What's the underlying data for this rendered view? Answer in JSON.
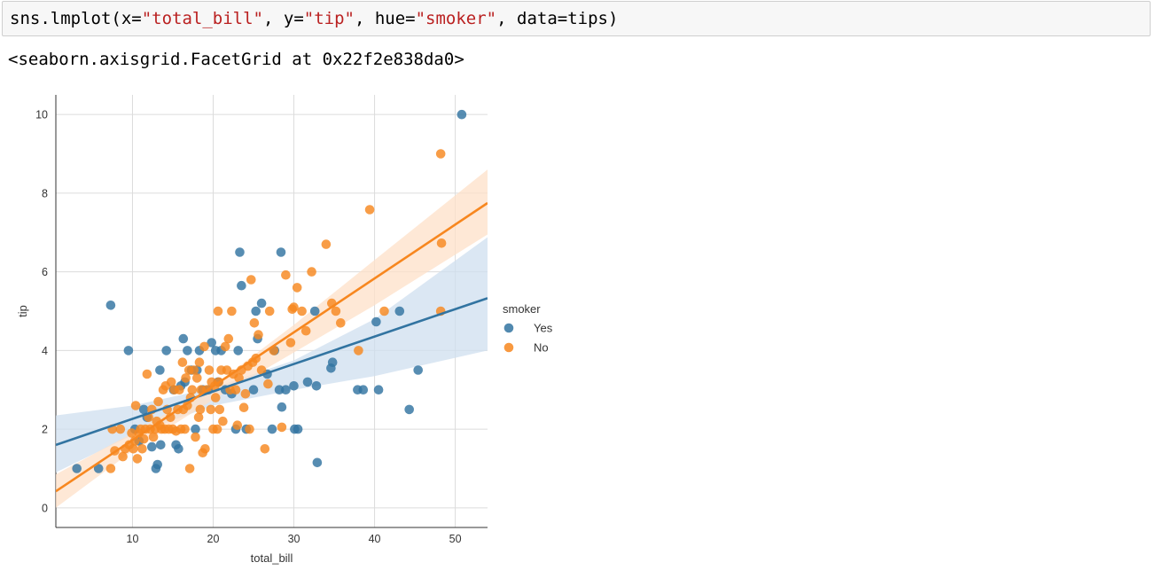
{
  "cell": {
    "code_parts": [
      "sns.lmplot(x=",
      "\"total_bill\"",
      ", y=",
      "\"tip\"",
      ", hue=",
      "\"smoker\"",
      ", data=tips)"
    ],
    "output": "<seaborn.axisgrid.FacetGrid at 0x22f2e838da0>"
  },
  "colors": {
    "yes": "#3274a1",
    "no": "#f7871f",
    "band_yes": "#cfdfef",
    "band_no": "#fde0c8",
    "grid": "#dcdcdc",
    "axis": "#333333"
  },
  "chart_data": {
    "type": "scatter",
    "title": "",
    "xlabel": "total_bill",
    "ylabel": "tip",
    "xlim": [
      0.5,
      54
    ],
    "ylim": [
      -0.5,
      10.5
    ],
    "xticks": [
      10,
      20,
      30,
      40,
      50
    ],
    "yticks": [
      0,
      2,
      4,
      6,
      8,
      10
    ],
    "grid": true,
    "legend": {
      "title": "smoker",
      "placement": "right"
    },
    "series": [
      {
        "name": "Yes",
        "color": "#3274a1",
        "fit_line": [
          [
            0.5,
            1.6
          ],
          [
            54,
            5.33
          ]
        ],
        "ci_band": {
          "x": [
            0.5,
            10,
            20,
            30,
            40,
            54
          ],
          "upper": [
            2.35,
            2.6,
            3.05,
            3.75,
            4.8,
            6.88
          ],
          "lower": [
            0.9,
            1.85,
            2.6,
            3.0,
            3.35,
            4.0
          ]
        },
        "points": [
          [
            3.1,
            1
          ],
          [
            5.8,
            1
          ],
          [
            7.3,
            5.15
          ],
          [
            9.5,
            4
          ],
          [
            10.3,
            2
          ],
          [
            10.8,
            1.7
          ],
          [
            11.4,
            2.5
          ],
          [
            11.8,
            2.3
          ],
          [
            12.4,
            1.55
          ],
          [
            12.9,
            1
          ],
          [
            13.1,
            1.1
          ],
          [
            13.4,
            3.5
          ],
          [
            13.5,
            1.6
          ],
          [
            14.2,
            4
          ],
          [
            15.1,
            3
          ],
          [
            15.4,
            1.6
          ],
          [
            15.7,
            1.5
          ],
          [
            16,
            3.1
          ],
          [
            16.3,
            4.3
          ],
          [
            16.5,
            3.2
          ],
          [
            16.8,
            4
          ],
          [
            17.3,
            3.5
          ],
          [
            17.8,
            2
          ],
          [
            18,
            3.5
          ],
          [
            18.3,
            4
          ],
          [
            18.7,
            3
          ],
          [
            19.4,
            3
          ],
          [
            19.8,
            4.2
          ],
          [
            20.3,
            4
          ],
          [
            20.6,
            3.2
          ],
          [
            21,
            4
          ],
          [
            21.5,
            3
          ],
          [
            22.3,
            2.9
          ],
          [
            22.8,
            2
          ],
          [
            23.1,
            4
          ],
          [
            23.3,
            6.5
          ],
          [
            23.5,
            5.65
          ],
          [
            24.1,
            2
          ],
          [
            25,
            3
          ],
          [
            25.3,
            5
          ],
          [
            25.5,
            4.3
          ],
          [
            26,
            5.2
          ],
          [
            26.7,
            3.4
          ],
          [
            27.3,
            2
          ],
          [
            27.6,
            4
          ],
          [
            28.2,
            3
          ],
          [
            28.4,
            6.5
          ],
          [
            28.5,
            2.56
          ],
          [
            29,
            3
          ],
          [
            30,
            3.1
          ],
          [
            30.1,
            2
          ],
          [
            30.5,
            2
          ],
          [
            31.7,
            3.2
          ],
          [
            32.6,
            5
          ],
          [
            32.9,
            1.15
          ],
          [
            32.8,
            3.1
          ],
          [
            34.6,
            3.55
          ],
          [
            34.8,
            3.7
          ],
          [
            37.9,
            3
          ],
          [
            38.6,
            3
          ],
          [
            40.2,
            4.73
          ],
          [
            40.5,
            3
          ],
          [
            43.1,
            5
          ],
          [
            44.3,
            2.5
          ],
          [
            45.4,
            3.5
          ],
          [
            50.8,
            10
          ]
        ]
      },
      {
        "name": "No",
        "color": "#f7871f",
        "fit_line": [
          [
            0.5,
            0.42
          ],
          [
            54,
            7.75
          ]
        ],
        "ci_band": {
          "x": [
            0.5,
            10,
            20,
            30,
            40,
            54
          ],
          "upper": [
            0.85,
            1.9,
            3.1,
            4.65,
            6.3,
            8.6
          ],
          "lower": [
            0.0,
            1.45,
            2.75,
            3.95,
            5.15,
            6.95
          ]
        },
        "points": [
          [
            7.3,
            1
          ],
          [
            7.5,
            2
          ],
          [
            7.8,
            1.45
          ],
          [
            8.5,
            2
          ],
          [
            8.8,
            1.3
          ],
          [
            9.1,
            1.5
          ],
          [
            9.6,
            1.6
          ],
          [
            9.9,
            1.9
          ],
          [
            10.1,
            1.5
          ],
          [
            10.3,
            1.7
          ],
          [
            10.4,
            2.6
          ],
          [
            10.6,
            1.25
          ],
          [
            10.8,
            1.9
          ],
          [
            11,
            2
          ],
          [
            11.2,
            1.5
          ],
          [
            11.4,
            1.75
          ],
          [
            11.6,
            2
          ],
          [
            11.8,
            3.4
          ],
          [
            12,
            2.3
          ],
          [
            12.2,
            2
          ],
          [
            12.4,
            2.5
          ],
          [
            12.6,
            1.8
          ],
          [
            12.8,
            2
          ],
          [
            13,
            2.2
          ],
          [
            13.2,
            2.7
          ],
          [
            13.4,
            2.1
          ],
          [
            13.6,
            2
          ],
          [
            13.8,
            3
          ],
          [
            14,
            2
          ],
          [
            14.1,
            3.1
          ],
          [
            14.3,
            2.5
          ],
          [
            14.5,
            2
          ],
          [
            14.7,
            2.3
          ],
          [
            14.8,
            3.2
          ],
          [
            15,
            2
          ],
          [
            15.2,
            3
          ],
          [
            15.4,
            1.95
          ],
          [
            15.6,
            2.5
          ],
          [
            15.8,
            3
          ],
          [
            16,
            2
          ],
          [
            16.2,
            3.7
          ],
          [
            16.3,
            2.5
          ],
          [
            16.5,
            2
          ],
          [
            16.6,
            3.3
          ],
          [
            16.8,
            2.6
          ],
          [
            17,
            3.5
          ],
          [
            17.1,
            1
          ],
          [
            17.2,
            2.8
          ],
          [
            17.4,
            3
          ],
          [
            17.6,
            3.5
          ],
          [
            17.8,
            1.8
          ],
          [
            18,
            3.3
          ],
          [
            18.2,
            2.3
          ],
          [
            18.3,
            3.7
          ],
          [
            18.4,
            2.5
          ],
          [
            18.5,
            3
          ],
          [
            18.7,
            1.4
          ],
          [
            18.9,
            4.1
          ],
          [
            19,
            1.5
          ],
          [
            19.2,
            3
          ],
          [
            19.5,
            3.5
          ],
          [
            19.7,
            2.5
          ],
          [
            19.8,
            3.2
          ],
          [
            20,
            2
          ],
          [
            20.2,
            3.1
          ],
          [
            20.3,
            2.8
          ],
          [
            20.5,
            2
          ],
          [
            20.6,
            5
          ],
          [
            20.7,
            3.2
          ],
          [
            20.8,
            2.5
          ],
          [
            21,
            3.5
          ],
          [
            21.2,
            2.2
          ],
          [
            21.5,
            4.1
          ],
          [
            21.7,
            3.5
          ],
          [
            21.9,
            4.3
          ],
          [
            22.1,
            3
          ],
          [
            22.3,
            5
          ],
          [
            22.5,
            3.4
          ],
          [
            22.8,
            3
          ],
          [
            23,
            2.1
          ],
          [
            23.2,
            3.3
          ],
          [
            23.5,
            3.5
          ],
          [
            23.8,
            2.55
          ],
          [
            24,
            2.9
          ],
          [
            24.3,
            3.6
          ],
          [
            24.5,
            2
          ],
          [
            24.7,
            5.8
          ],
          [
            24.9,
            3.7
          ],
          [
            25.1,
            4.7
          ],
          [
            25.3,
            3.8
          ],
          [
            25.6,
            4.4
          ],
          [
            26,
            3.5
          ],
          [
            26.4,
            1.5
          ],
          [
            26.8,
            3.15
          ],
          [
            27,
            5
          ],
          [
            27.5,
            4
          ],
          [
            28.5,
            2.05
          ],
          [
            29,
            5.92
          ],
          [
            29.6,
            4.2
          ],
          [
            29.8,
            5.05
          ],
          [
            30,
            5.1
          ],
          [
            30.4,
            5.6
          ],
          [
            31,
            5
          ],
          [
            31.5,
            4.5
          ],
          [
            32.2,
            6
          ],
          [
            34,
            6.7
          ],
          [
            34.7,
            5.2
          ],
          [
            35.2,
            5
          ],
          [
            35.8,
            4.7
          ],
          [
            38,
            4
          ],
          [
            39.4,
            7.58
          ],
          [
            41.2,
            5
          ],
          [
            48.2,
            5
          ],
          [
            48.2,
            9
          ],
          [
            48.3,
            6.73
          ]
        ]
      }
    ]
  }
}
